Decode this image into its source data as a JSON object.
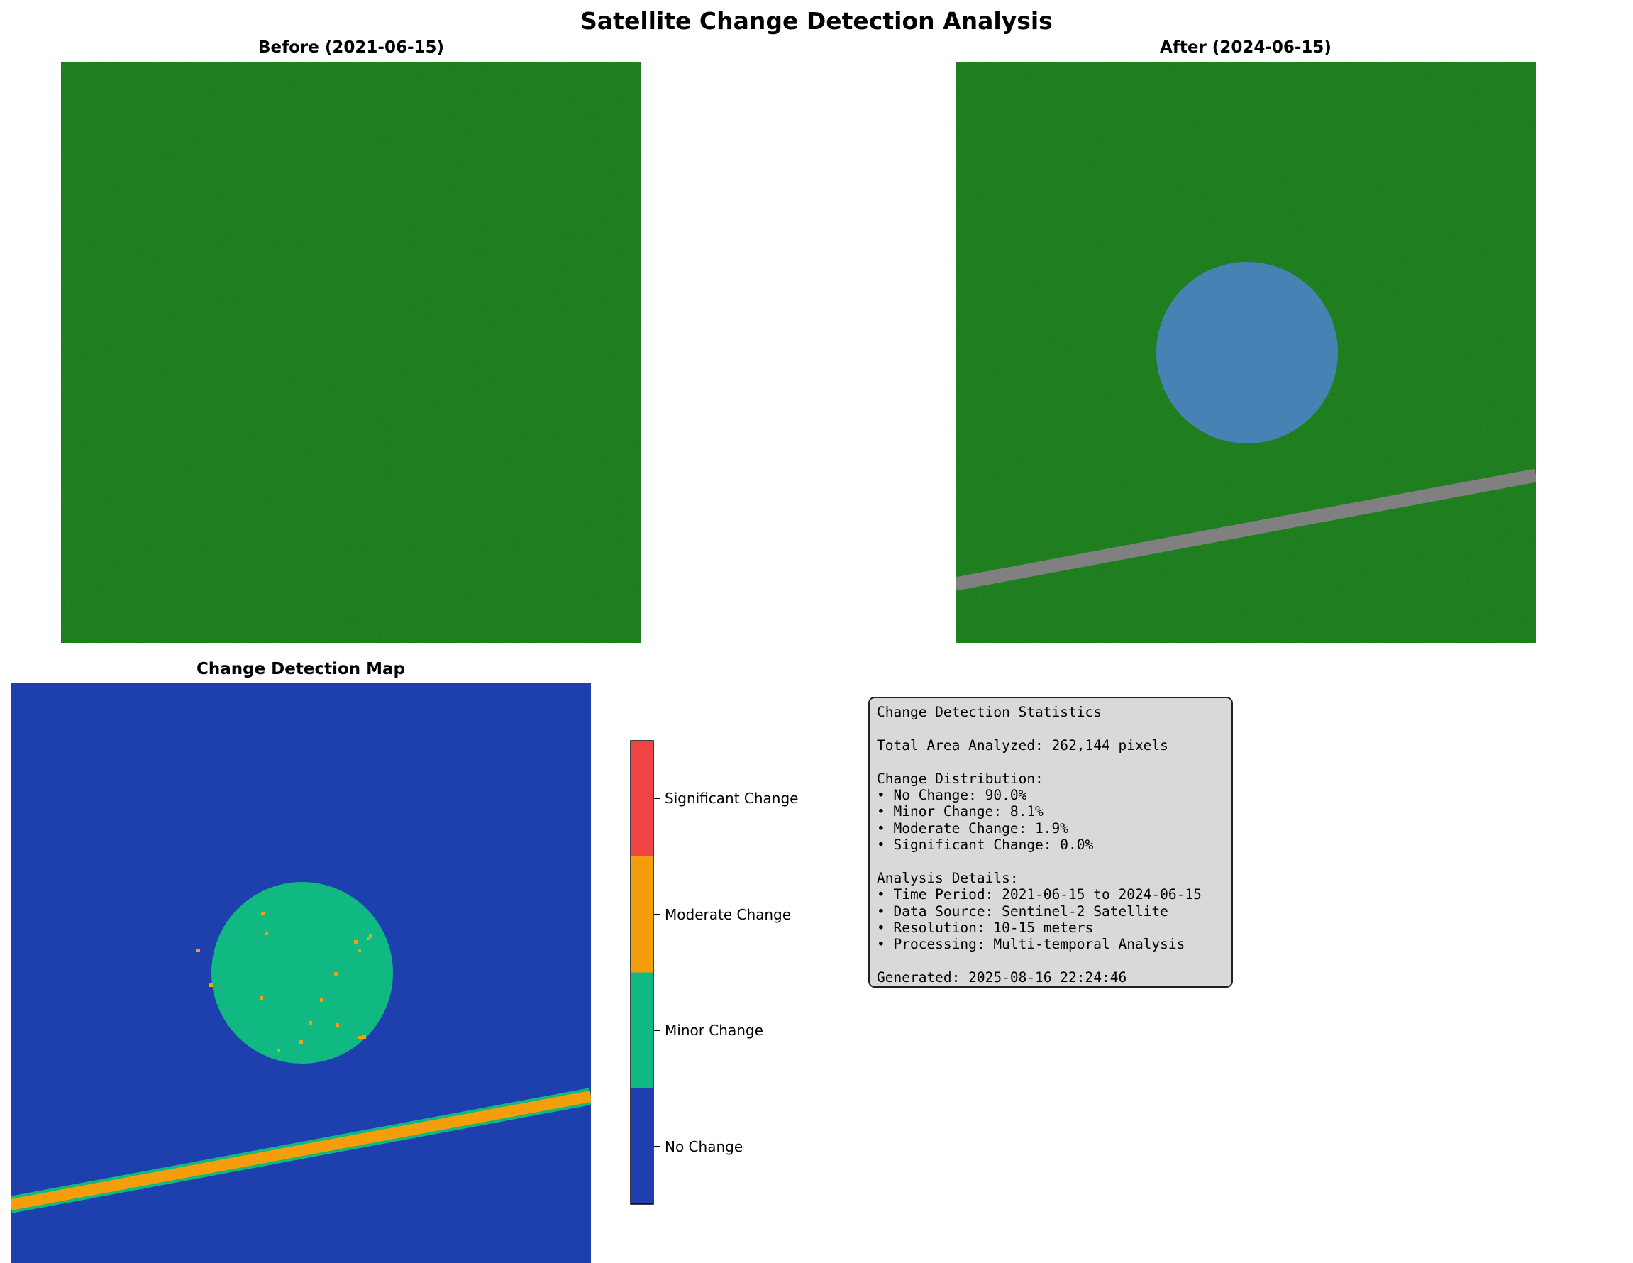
{
  "figure": {
    "title": "Satellite Change Detection Analysis"
  },
  "panels": {
    "before": {
      "title": "Before (2021-06-15)",
      "land_color": "#228b22"
    },
    "after": {
      "title": "After (2024-06-15)",
      "land_color": "#228b22",
      "water_color": "#4682b4",
      "road_color": "#808080"
    },
    "change_map": {
      "title": "Change Detection Map"
    }
  },
  "chart_data": {
    "type": "heatmap",
    "title": "Change Detection Map",
    "classes": [
      {
        "value": 0,
        "label": "No Change",
        "color": "#1e40af"
      },
      {
        "value": 1,
        "label": "Minor Change",
        "color": "#10b981"
      },
      {
        "value": 2,
        "label": "Moderate Change",
        "color": "#f59e0b"
      },
      {
        "value": 3,
        "label": "Significant Change",
        "color": "#ef4444"
      }
    ],
    "distribution_percent": [
      90.0,
      8.1,
      1.9,
      0.0
    ],
    "colorbar_ticks": [
      "No Change",
      "Minor Change",
      "Moderate Change",
      "Significant Change"
    ]
  },
  "stats": {
    "lines": [
      "Change Detection Statistics",
      "",
      "Total Area Analyzed: 262,144 pixels",
      "",
      "Change Distribution:",
      "• No Change: 90.0%",
      "• Minor Change: 8.1%",
      "• Moderate Change: 1.9%",
      "• Significant Change: 0.0%",
      "",
      "Analysis Details:",
      "• Time Period: 2021-06-15 to 2024-06-15",
      "• Data Source: Sentinel-2 Satellite",
      "• Resolution: 10-15 meters",
      "• Processing: Multi-temporal Analysis",
      "",
      "Generated: 2025-08-16 22:24:46"
    ]
  }
}
